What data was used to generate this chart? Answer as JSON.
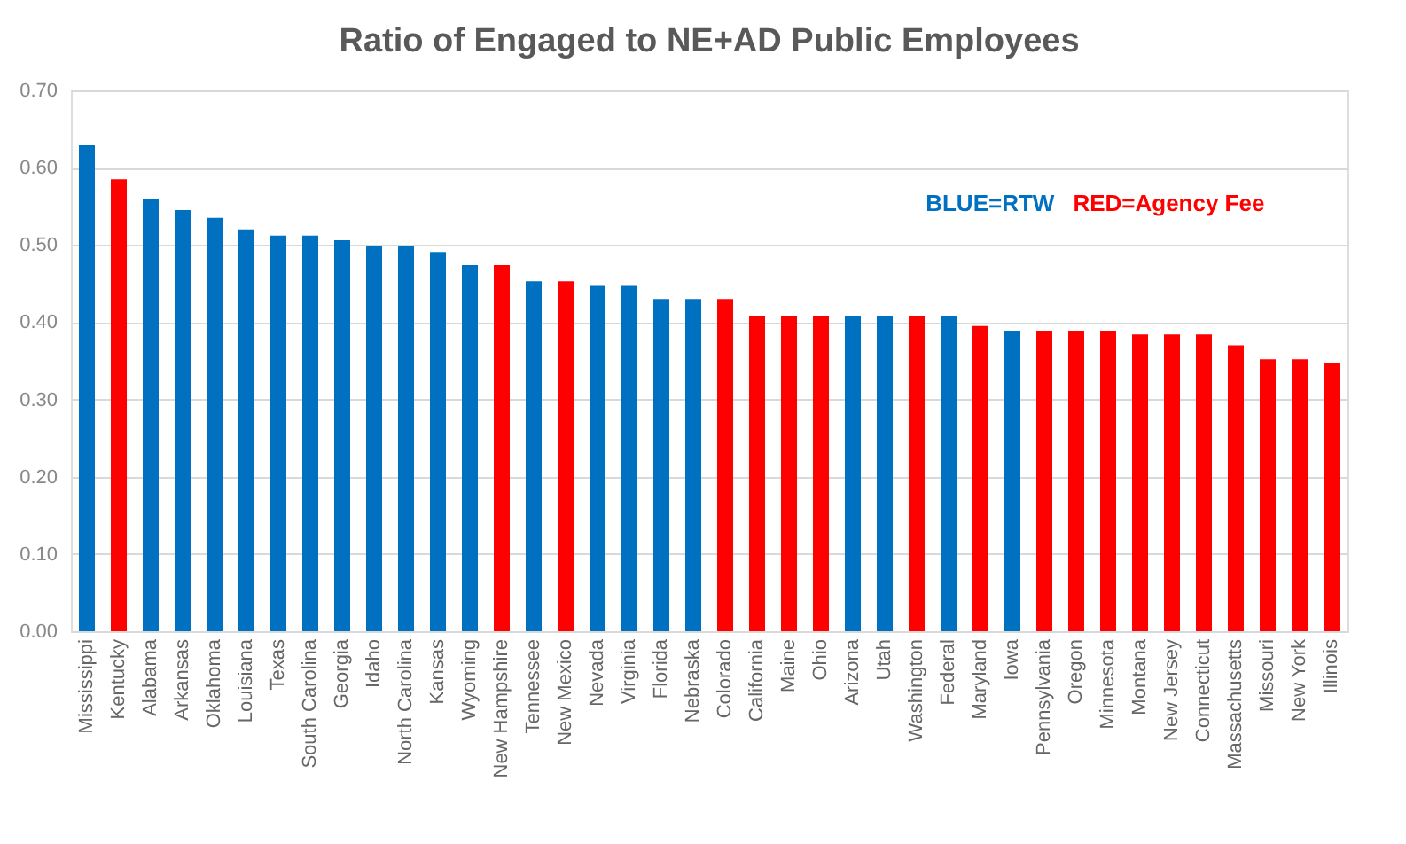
{
  "chart_data": {
    "type": "bar",
    "title": "Ratio of Engaged to NE+AD Public Employees",
    "categories": [
      "Mississippi",
      "Kentucky",
      "Alabama",
      "Arkansas",
      "Oklahoma",
      "Louisiana",
      "Texas",
      "South Carolina",
      "Georgia",
      "Idaho",
      "North Carolina",
      "Kansas",
      "Wyoming",
      "New Hampshire",
      "Tennessee",
      "New Mexico",
      "Nevada",
      "Virginia",
      "Florida",
      "Nebraska",
      "Colorado",
      "California",
      "Maine",
      "Ohio",
      "Arizona",
      "Utah",
      "Washington",
      "Federal",
      "Maryland",
      "Iowa",
      "Pennsylvania",
      "Oregon",
      "Minnesota",
      "Montana",
      "New Jersey",
      "Connecticut",
      "Massachusetts",
      "Missouri",
      "New York",
      "Illinois"
    ],
    "values": [
      0.63,
      0.585,
      0.56,
      0.545,
      0.535,
      0.52,
      0.512,
      0.512,
      0.506,
      0.498,
      0.498,
      0.491,
      0.474,
      0.474,
      0.453,
      0.453,
      0.447,
      0.447,
      0.43,
      0.43,
      0.43,
      0.408,
      0.408,
      0.408,
      0.408,
      0.408,
      0.408,
      0.408,
      0.395,
      0.389,
      0.389,
      0.389,
      0.389,
      0.384,
      0.384,
      0.384,
      0.37,
      0.352,
      0.352,
      0.347
    ],
    "colors": [
      "#0070c0",
      "#ff0000",
      "#0070c0",
      "#0070c0",
      "#0070c0",
      "#0070c0",
      "#0070c0",
      "#0070c0",
      "#0070c0",
      "#0070c0",
      "#0070c0",
      "#0070c0",
      "#0070c0",
      "#ff0000",
      "#0070c0",
      "#ff0000",
      "#0070c0",
      "#0070c0",
      "#0070c0",
      "#0070c0",
      "#ff0000",
      "#ff0000",
      "#ff0000",
      "#ff0000",
      "#0070c0",
      "#0070c0",
      "#ff0000",
      "#0070c0",
      "#ff0000",
      "#0070c0",
      "#ff0000",
      "#ff0000",
      "#ff0000",
      "#ff0000",
      "#ff0000",
      "#ff0000",
      "#ff0000",
      "#ff0000",
      "#ff0000",
      "#ff0000"
    ],
    "ylim": [
      0,
      0.7
    ],
    "yticks": [
      {
        "value": 0,
        "label": "0.00"
      },
      {
        "value": 0.1,
        "label": "0.10"
      },
      {
        "value": 0.2,
        "label": "0.20"
      },
      {
        "value": 0.3,
        "label": "0.30"
      },
      {
        "value": 0.4,
        "label": "0.40"
      },
      {
        "value": 0.5,
        "label": "0.50"
      },
      {
        "value": 0.6,
        "label": "0.60"
      },
      {
        "value": 0.7,
        "label": "0.70"
      }
    ],
    "grid": "y",
    "annotations": [
      "BLUE=RTW",
      "RED=Agency Fee"
    ]
  }
}
